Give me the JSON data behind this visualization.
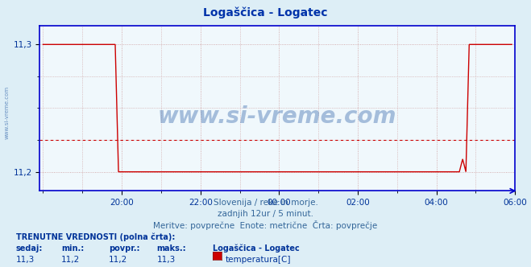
{
  "title": "Logaščica - Logatec",
  "subtitle1": "Slovenija / reke in morje.",
  "subtitle2": "zadnjih 12ur / 5 minut.",
  "subtitle3": "Meritve: povprečne  Enote: metrične  Črta: povprečje",
  "bg_color": "#ddeef6",
  "plot_bg_color": "#f0f8fc",
  "line_color": "#cc0000",
  "avg_line_color": "#cc0000",
  "grid_color": "#cc9999",
  "border_color": "#0000cc",
  "title_color": "#0033aa",
  "watermark_color": "#3366aa",
  "y_min": 11.2,
  "y_max": 11.3,
  "y_ticks": [
    11.2,
    11.3
  ],
  "x_tick_positions": [
    24,
    48,
    72,
    96,
    120,
    144
  ],
  "x_ticks_labels": [
    "20:00",
    "22:00",
    "00:00",
    "02:00",
    "04:00",
    "06:00"
  ],
  "avg_value": 11.225,
  "n_points": 144,
  "drop_start": 22,
  "drop_end": 23,
  "rise_start": 129,
  "rise_end": 130,
  "high_val": 11.3,
  "low_val": 11.2,
  "small_spike_idx": 128,
  "small_spike_val": 11.21,
  "current": "11,3",
  "min_val": "11,2",
  "povpr_val": "11,2",
  "maks_val": "11,3",
  "station_name": "Logaščica - Logatec",
  "param_name": "temperatura[C]",
  "legend_color": "#cc0000",
  "footer_color": "#336699",
  "label_color": "#003399",
  "watermark_text": "www.si-vreme.com",
  "left_watermark": "www.si-vreme.com",
  "ylim_low": 11.185,
  "ylim_high": 11.315
}
